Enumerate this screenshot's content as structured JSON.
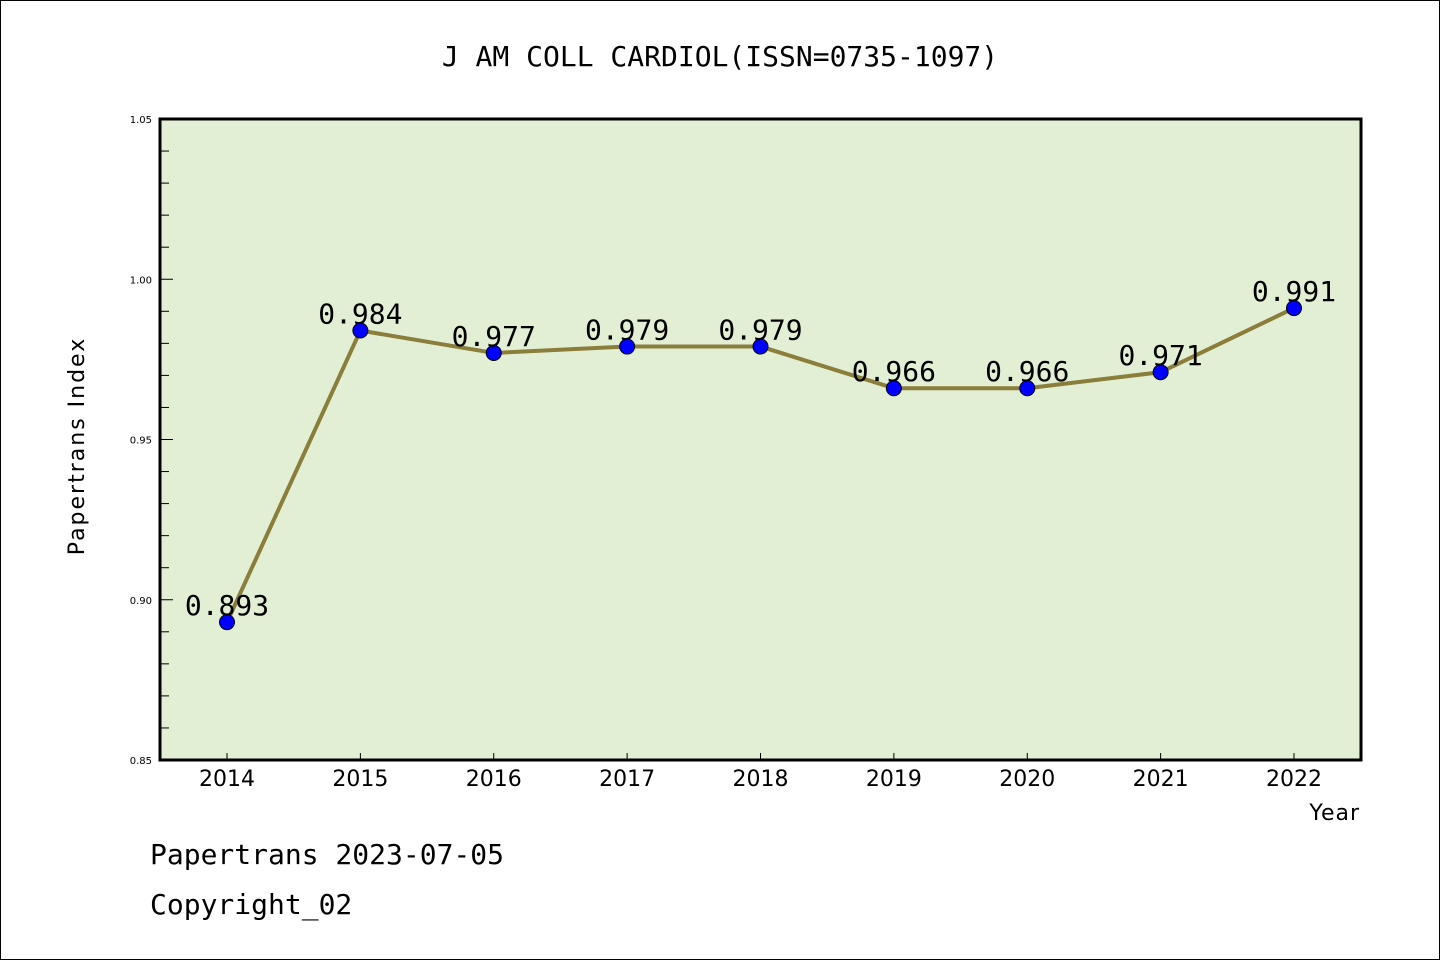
{
  "chart_data": {
    "type": "line",
    "title": "J AM COLL CARDIOL(ISSN=0735-1097)",
    "xlabel": "Year",
    "ylabel": "Papertrans Index",
    "x": [
      "2014",
      "2015",
      "2016",
      "2017",
      "2018",
      "2019",
      "2020",
      "2021",
      "2022"
    ],
    "series": [
      {
        "name": "Papertrans Index",
        "values": [
          0.893,
          0.984,
          0.977,
          0.979,
          0.979,
          0.966,
          0.966,
          0.971,
          0.991
        ],
        "labels": [
          "0.893",
          "0.984",
          "0.977",
          "0.979",
          "0.979",
          "0.966",
          "0.966",
          "0.971",
          "0.991"
        ]
      }
    ],
    "ylim": [
      0.85,
      1.05
    ],
    "yticks": [
      "0.85",
      "0.90",
      "0.95",
      "1.00",
      "1.05"
    ],
    "ytick_values": [
      0.85,
      0.9,
      0.95,
      1.0,
      1.05
    ],
    "minor_step": 0.01,
    "grid": false,
    "colors": {
      "plot_bg": "#e2efd5",
      "line": "#8b7d3a",
      "marker": "#0000ff",
      "axis": "#000000"
    }
  },
  "footer": {
    "line1": "Papertrans 2023-07-05",
    "line2": "Copyright_02"
  }
}
